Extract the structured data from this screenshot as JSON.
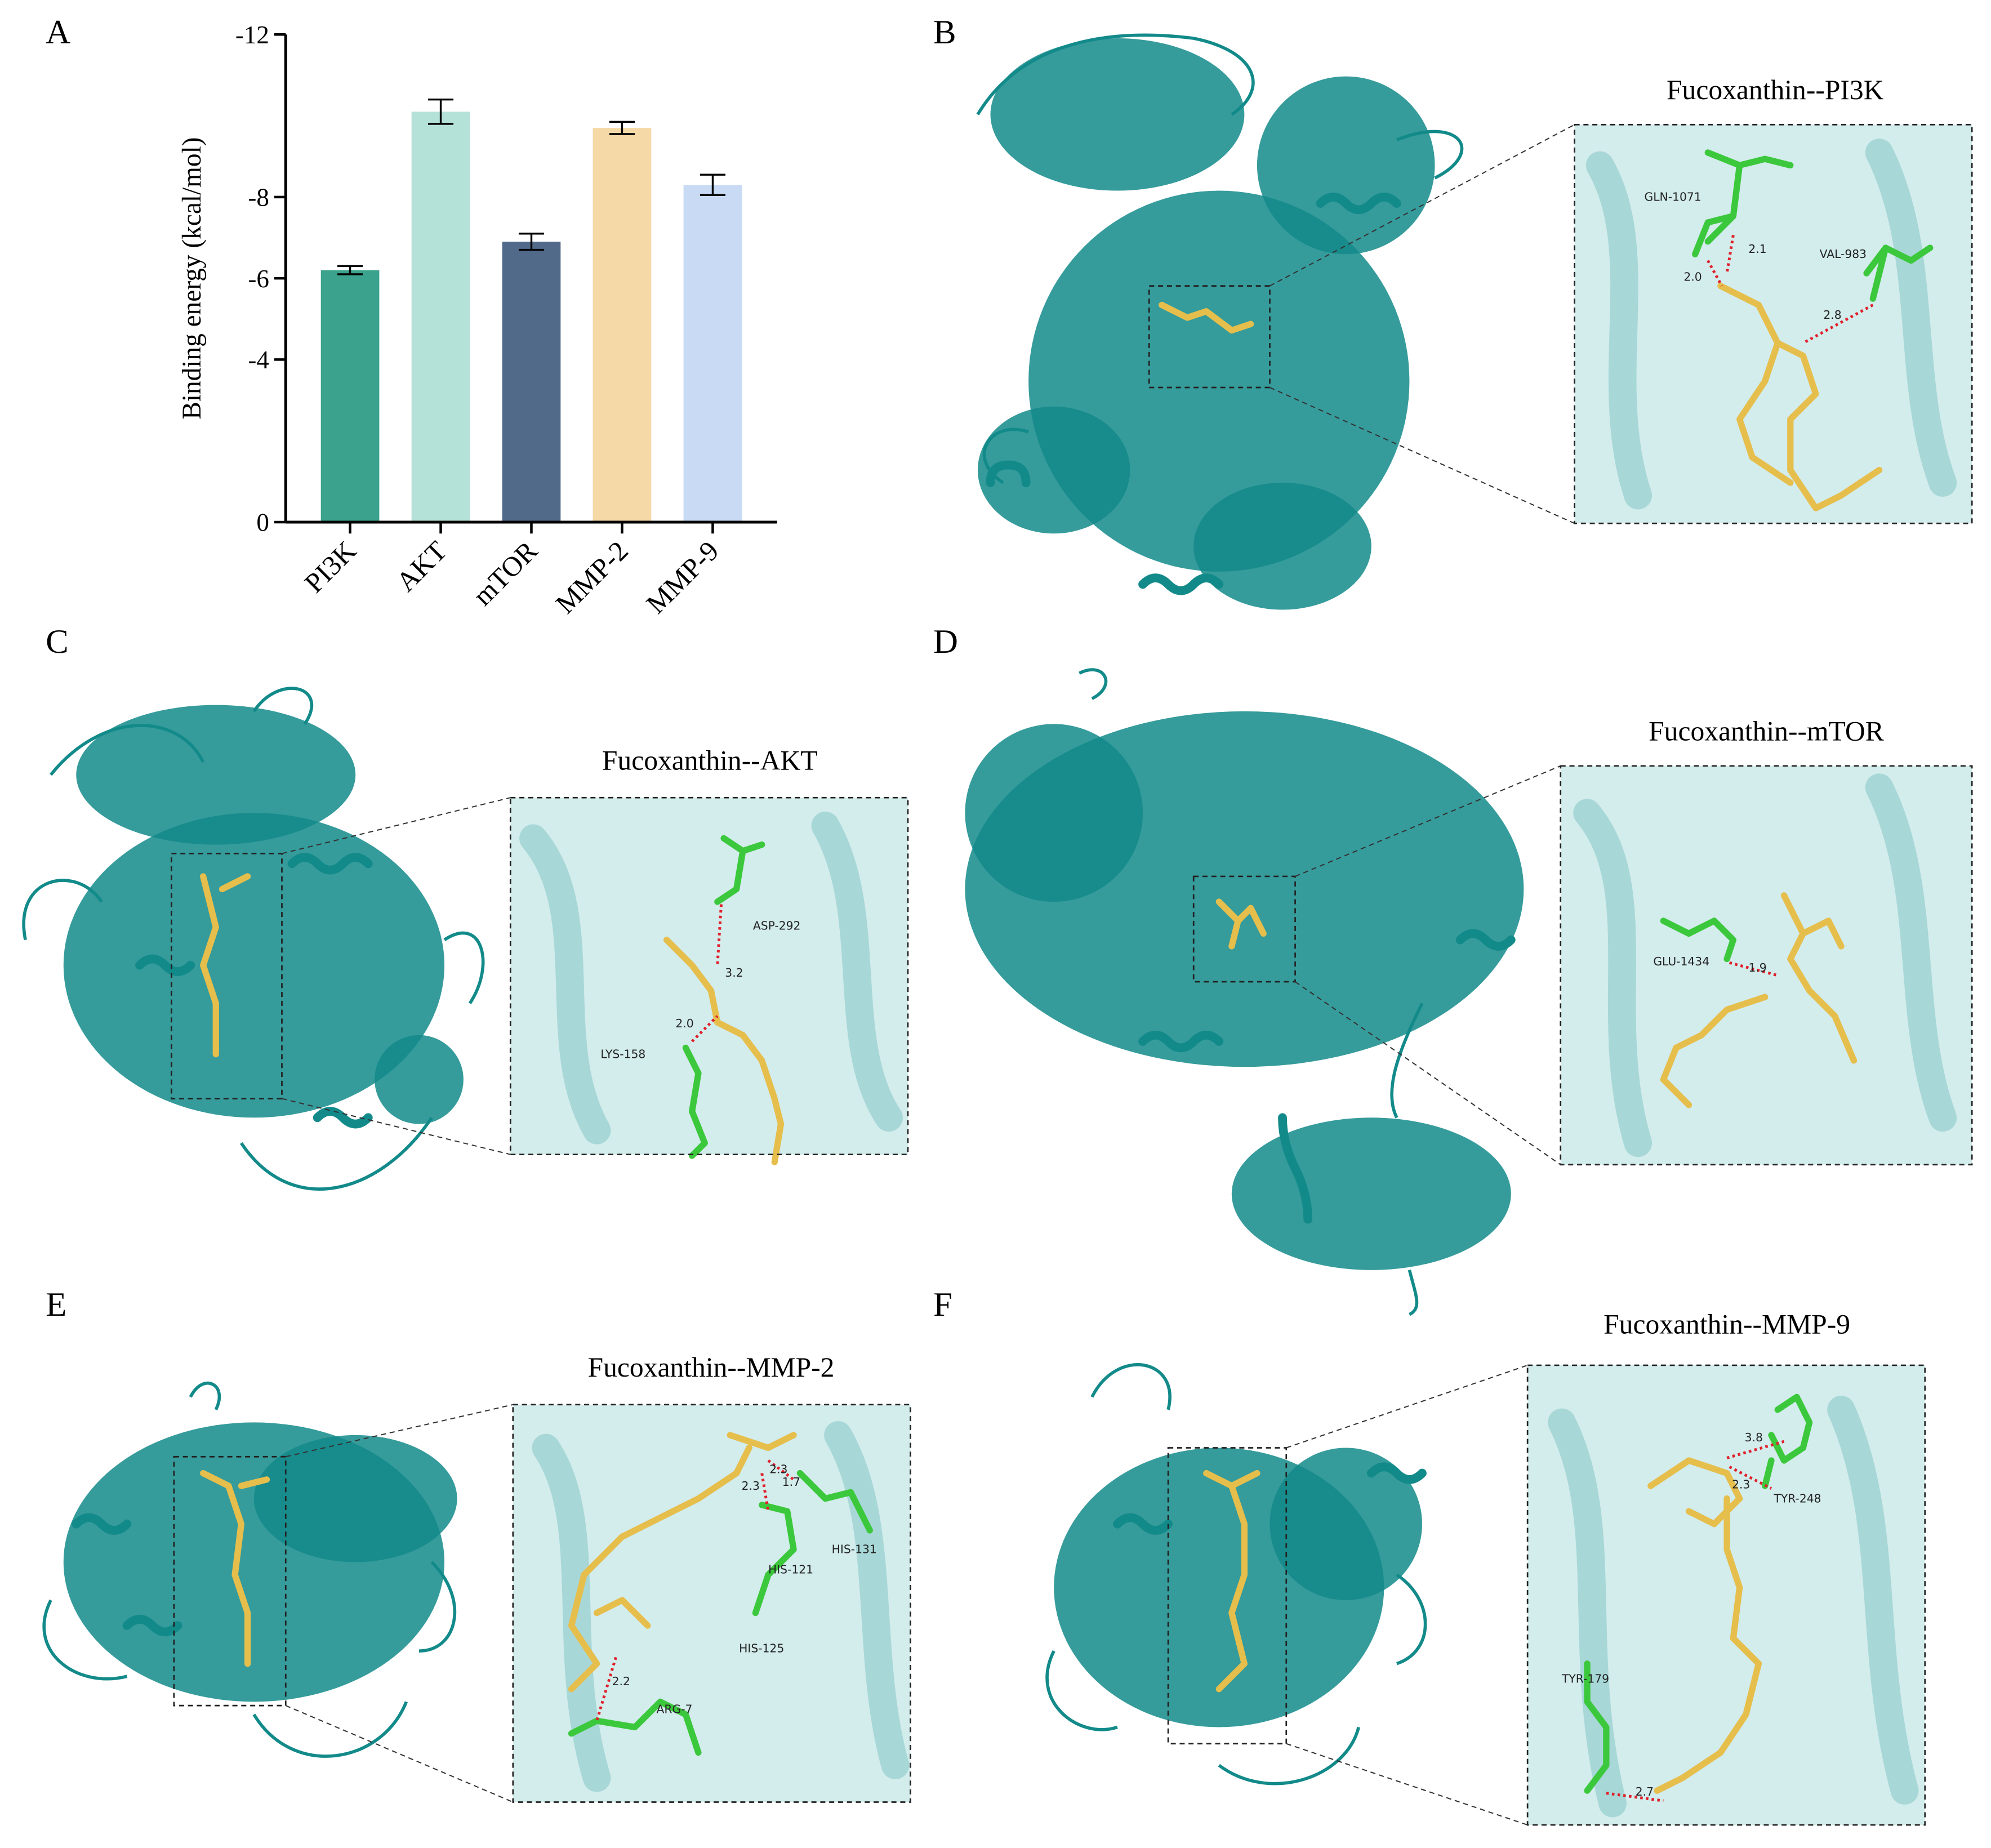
{
  "figure_labels": [
    "A",
    "B",
    "C",
    "D",
    "E",
    "F"
  ],
  "chart_data": {
    "type": "bar",
    "y_label": "Binding energy (kcal/mol)",
    "categories": [
      "PI3K",
      "AKT",
      "mTOR",
      "MMP-2",
      "MMP-9"
    ],
    "values": [
      -6.2,
      -10.1,
      -6.9,
      -9.7,
      -8.3
    ],
    "errors": [
      0.1,
      0.3,
      0.2,
      0.15,
      0.25
    ],
    "colors": [
      "#3ba28d",
      "#b5e2d8",
      "#526a8a",
      "#f5d9a7",
      "#c9dbf4"
    ],
    "ylim": [
      0,
      -12
    ],
    "yticks": [
      -12,
      -8,
      -6,
      -4,
      0
    ]
  },
  "insets": [
    {
      "title": "Fucoxanthin--PI3K",
      "residues": [
        "GLN-1071",
        "VAL-983"
      ],
      "distances": [
        "2.1",
        "2.0",
        "2.8"
      ]
    },
    {
      "title": "Fucoxanthin--AKT",
      "residues": [
        "ASP-292",
        "LYS-158"
      ],
      "distances": [
        "3.2",
        "2.0"
      ]
    },
    {
      "title": "Fucoxanthin--mTOR",
      "residues": [
        "GLU-1434"
      ],
      "distances": [
        "1.9"
      ]
    },
    {
      "title": "Fucoxanthin--MMP-2",
      "residues": [
        "HIS-131",
        "HIS-121",
        "HIS-125",
        "ARG-7"
      ],
      "distances": [
        "2.3",
        "2.3",
        "1.7",
        "2.2"
      ]
    },
    {
      "title": "Fucoxanthin--MMP-9",
      "residues": [
        "TYR-248",
        "TYR-179"
      ],
      "distances": [
        "3.8",
        "2.3",
        "2.7"
      ]
    }
  ]
}
